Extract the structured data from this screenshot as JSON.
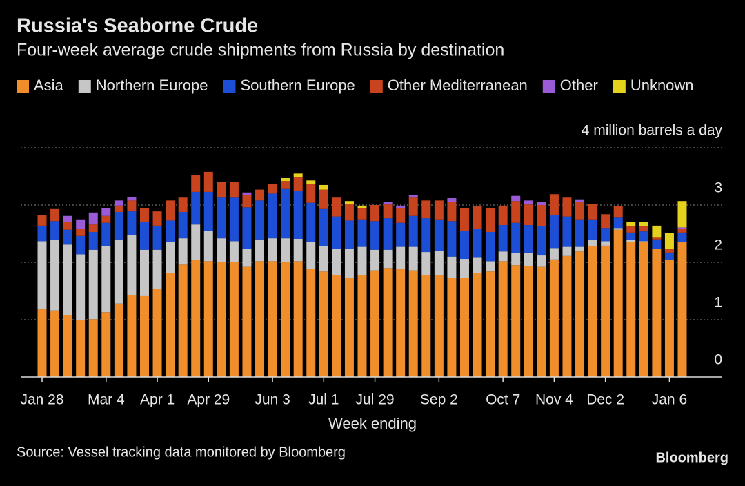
{
  "chart_data": {
    "type": "stacked_bar",
    "title": "Russia's Seaborne Crude",
    "subtitle": "Four-week average crude shipments from Russia by destination",
    "x_label": "Week ending",
    "source": "Source: Vessel tracking data monitored by Bloomberg",
    "brand": "Bloomberg",
    "categories": [
      "Jan 28",
      null,
      null,
      null,
      null,
      "Mar 4",
      null,
      null,
      null,
      "Apr 1",
      null,
      null,
      null,
      "Apr 29",
      null,
      null,
      null,
      null,
      "Jun 3",
      null,
      null,
      null,
      "Jul 1",
      null,
      null,
      null,
      "Jul 29",
      null,
      null,
      null,
      null,
      "Sep 2",
      null,
      null,
      null,
      null,
      "Oct 7",
      null,
      null,
      null,
      "Nov 4",
      null,
      null,
      null,
      "Dec 2",
      null,
      null,
      null,
      null,
      "Jan 6",
      null
    ],
    "ylim": [
      0,
      4
    ],
    "yticks": [
      0,
      1,
      2,
      3,
      {
        "value": 4,
        "label": "4 million barrels a day"
      }
    ],
    "grid": true,
    "series": [
      {
        "name": "Asia",
        "color": "#ef8e2b",
        "values": [
          1.18,
          1.16,
          1.08,
          1.0,
          1.01,
          1.13,
          1.28,
          1.43,
          1.41,
          1.54,
          1.81,
          1.96,
          2.04,
          2.02,
          2.0,
          2.0,
          1.92,
          2.02,
          2.02,
          2.0,
          2.02,
          1.89,
          1.84,
          1.78,
          1.73,
          1.78,
          1.86,
          1.9,
          1.89,
          1.86,
          1.78,
          1.78,
          1.73,
          1.73,
          1.81,
          1.84,
          2.02,
          1.95,
          1.93,
          1.92,
          2.05,
          2.11,
          2.19,
          2.28,
          2.29,
          2.57,
          2.36,
          2.35,
          2.23,
          2.04,
          2.35
        ]
      },
      {
        "name": "Northern Europe",
        "color": "#c6c6c6",
        "values": [
          1.19,
          1.23,
          1.23,
          1.14,
          1.21,
          1.15,
          1.12,
          1.04,
          0.81,
          0.68,
          0.54,
          0.46,
          0.62,
          0.53,
          0.42,
          0.37,
          0.32,
          0.38,
          0.4,
          0.42,
          0.39,
          0.46,
          0.44,
          0.46,
          0.51,
          0.49,
          0.36,
          0.32,
          0.38,
          0.41,
          0.4,
          0.42,
          0.37,
          0.33,
          0.27,
          0.18,
          0.17,
          0.21,
          0.24,
          0.2,
          0.2,
          0.16,
          0.08,
          0.11,
          0.08,
          0.03,
          0.03,
          0.02,
          0.01,
          0.01,
          0.01
        ]
      },
      {
        "name": "Southern Europe",
        "color": "#1d4fd6",
        "values": [
          0.27,
          0.33,
          0.26,
          0.32,
          0.31,
          0.41,
          0.48,
          0.42,
          0.48,
          0.42,
          0.38,
          0.46,
          0.57,
          0.68,
          0.71,
          0.76,
          0.72,
          0.68,
          0.78,
          0.86,
          0.84,
          0.69,
          0.65,
          0.56,
          0.49,
          0.48,
          0.5,
          0.55,
          0.42,
          0.54,
          0.59,
          0.55,
          0.62,
          0.49,
          0.5,
          0.51,
          0.46,
          0.53,
          0.48,
          0.51,
          0.58,
          0.53,
          0.48,
          0.36,
          0.23,
          0.18,
          0.13,
          0.17,
          0.16,
          0.12,
          0.16
        ]
      },
      {
        "name": "Other Mediterranean",
        "color": "#c8441f",
        "values": [
          0.19,
          0.21,
          0.13,
          0.12,
          0.13,
          0.12,
          0.11,
          0.19,
          0.24,
          0.25,
          0.35,
          0.25,
          0.29,
          0.35,
          0.27,
          0.27,
          0.21,
          0.19,
          0.17,
          0.14,
          0.24,
          0.33,
          0.34,
          0.33,
          0.29,
          0.2,
          0.28,
          0.24,
          0.25,
          0.32,
          0.31,
          0.33,
          0.34,
          0.39,
          0.4,
          0.42,
          0.34,
          0.38,
          0.36,
          0.37,
          0.36,
          0.33,
          0.31,
          0.27,
          0.24,
          0.2,
          0.11,
          0.09,
          0.03,
          0.06,
          0.06
        ]
      },
      {
        "name": "Other",
        "color": "#9b5bd6",
        "values": [
          0,
          0,
          0.11,
          0.17,
          0.21,
          0.13,
          0.09,
          0.06,
          0,
          0,
          0,
          0,
          0,
          0,
          0,
          0,
          0.05,
          0,
          0,
          0,
          0,
          0,
          0,
          0,
          0,
          0,
          0,
          0.05,
          0.05,
          0.05,
          0,
          0,
          0.06,
          0,
          0,
          0,
          0,
          0.09,
          0.07,
          0.05,
          0,
          0,
          0.04,
          0,
          0,
          0,
          0,
          0,
          0,
          0,
          0.03
        ]
      },
      {
        "name": "Unknown",
        "color": "#e5d21c",
        "values": [
          0,
          0,
          0,
          0,
          0,
          0,
          0,
          0,
          0,
          0,
          0,
          0,
          0,
          0,
          0,
          0,
          0,
          0,
          0,
          0.05,
          0.06,
          0.06,
          0.08,
          0,
          0.05,
          0.04,
          0,
          0,
          0,
          0,
          0,
          0,
          0,
          0,
          0,
          0,
          0,
          0,
          0,
          0,
          0,
          0,
          0,
          0,
          0,
          0,
          0.08,
          0.08,
          0.21,
          0.28,
          0.46
        ]
      }
    ]
  }
}
